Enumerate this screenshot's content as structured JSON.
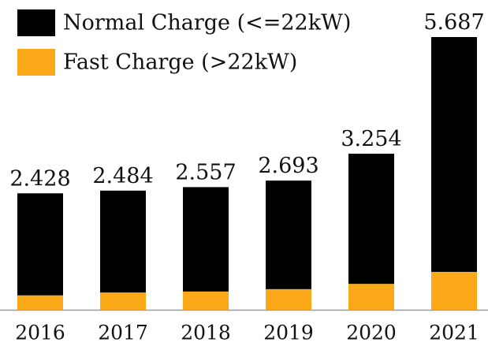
{
  "chart_data": {
    "type": "stacked_bar",
    "categories": [
      "2016",
      "2017",
      "2018",
      "2019",
      "2020",
      "2021"
    ],
    "series": [
      {
        "name": "Fast Charge (>22kW)",
        "color": "#fba919",
        "values": [
          0.3,
          0.36,
          0.38,
          0.43,
          0.54,
          0.79
        ]
      },
      {
        "name": "Normal Charge (<=22kW)",
        "color": "#000000",
        "values": [
          2.128,
          2.124,
          2.177,
          2.263,
          2.714,
          4.897
        ]
      }
    ],
    "totals": [
      2.428,
      2.484,
      2.557,
      2.693,
      3.254,
      5.687
    ],
    "legend_order": [
      1,
      0
    ]
  }
}
